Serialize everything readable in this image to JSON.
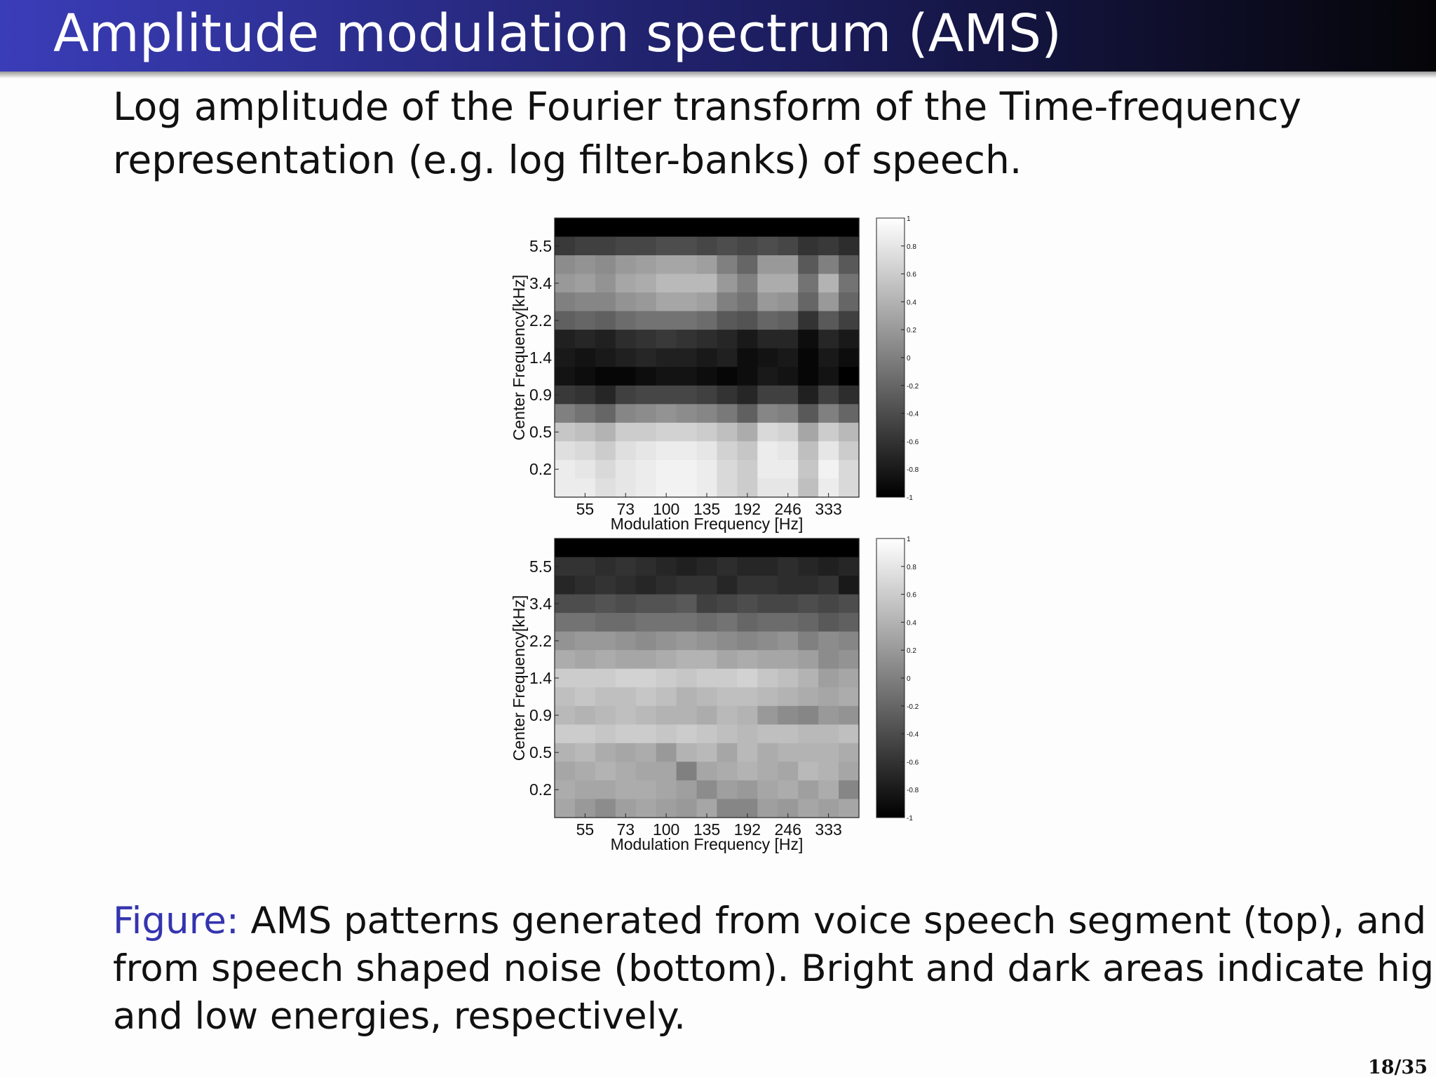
{
  "header": {
    "title": "Amplitude modulation spectrum (AMS)"
  },
  "body": [
    "Log amplitude of the Fourier transform of the Time-frequency",
    "representation (e.g. log filter-banks) of speech."
  ],
  "chart_data": [
    {
      "type": "heatmap",
      "colormap": "gray",
      "xlabel": "Modulation Frequency [Hz]",
      "ylabel": "Center Frequency[kHz]",
      "x": [
        null,
        "55",
        null,
        "73",
        null,
        "100",
        null,
        "135",
        null,
        "192",
        null,
        "246",
        null,
        "333",
        null
      ],
      "y": [
        null,
        "5.5",
        null,
        "3.4",
        null,
        "2.2",
        null,
        "1.4",
        null,
        "0.9",
        null,
        "0.5",
        null,
        "0.2",
        null
      ],
      "clim": [
        -1,
        1
      ],
      "cticks": [
        -1,
        -0.8,
        -0.6,
        -0.4,
        -0.2,
        0,
        0.2,
        0.4,
        0.6,
        0.8,
        1
      ],
      "values": [
        [
          -1,
          -1,
          -1,
          -1,
          -1,
          -1,
          -1,
          -1,
          -1,
          -1,
          -1,
          -1,
          -1,
          -1,
          -1
        ],
        [
          -0.55,
          -0.5,
          -0.5,
          -0.45,
          -0.45,
          -0.4,
          -0.4,
          -0.45,
          -0.4,
          -0.45,
          -0.4,
          -0.45,
          -0.6,
          -0.55,
          -0.65
        ],
        [
          0.1,
          0.15,
          0.1,
          0.2,
          0.25,
          0.3,
          0.3,
          0.25,
          0.0,
          -0.2,
          0.2,
          0.2,
          -0.3,
          0.0,
          -0.3
        ],
        [
          0.2,
          0.25,
          0.15,
          0.3,
          0.35,
          0.45,
          0.45,
          0.45,
          0.2,
          0.0,
          0.35,
          0.35,
          -0.1,
          0.4,
          -0.1
        ],
        [
          0.0,
          0.05,
          0.05,
          0.15,
          0.2,
          0.3,
          0.3,
          0.25,
          0.0,
          -0.1,
          0.2,
          0.15,
          -0.2,
          0.2,
          -0.2
        ],
        [
          -0.25,
          -0.2,
          -0.25,
          -0.15,
          -0.1,
          -0.1,
          -0.1,
          -0.15,
          -0.3,
          -0.35,
          -0.2,
          -0.25,
          -0.6,
          -0.3,
          -0.5
        ],
        [
          -0.75,
          -0.7,
          -0.75,
          -0.65,
          -0.6,
          -0.55,
          -0.6,
          -0.65,
          -0.7,
          -0.8,
          -0.7,
          -0.7,
          -0.9,
          -0.7,
          -0.8
        ],
        [
          -0.8,
          -0.85,
          -0.8,
          -0.75,
          -0.7,
          -0.75,
          -0.75,
          -0.8,
          -0.75,
          -0.9,
          -0.85,
          -0.8,
          -0.95,
          -0.8,
          -0.9
        ],
        [
          -0.85,
          -0.9,
          -0.95,
          -0.95,
          -0.9,
          -0.85,
          -0.85,
          -0.9,
          -0.95,
          -0.9,
          -0.8,
          -0.85,
          -0.95,
          -0.85,
          -1
        ],
        [
          -0.55,
          -0.6,
          -0.7,
          -0.5,
          -0.45,
          -0.45,
          -0.45,
          -0.5,
          -0.6,
          -0.7,
          -0.5,
          -0.5,
          -0.75,
          -0.5,
          -0.65
        ],
        [
          0.0,
          -0.1,
          -0.2,
          0.05,
          0.1,
          0.15,
          0.1,
          0.05,
          -0.05,
          -0.25,
          0.05,
          0.0,
          -0.3,
          0.0,
          -0.2
        ],
        [
          0.55,
          0.5,
          0.4,
          0.6,
          0.6,
          0.65,
          0.65,
          0.6,
          0.5,
          0.35,
          0.7,
          0.65,
          0.3,
          0.6,
          0.45
        ],
        [
          0.75,
          0.7,
          0.6,
          0.75,
          0.8,
          0.85,
          0.85,
          0.8,
          0.65,
          0.55,
          0.85,
          0.8,
          0.5,
          0.8,
          0.6
        ],
        [
          0.85,
          0.8,
          0.7,
          0.8,
          0.85,
          0.9,
          0.9,
          0.85,
          0.7,
          0.6,
          0.85,
          0.85,
          0.55,
          0.9,
          0.7
        ],
        [
          0.85,
          0.85,
          0.75,
          0.8,
          0.85,
          0.9,
          0.9,
          0.85,
          0.7,
          0.6,
          0.8,
          0.8,
          0.5,
          0.85,
          0.7
        ]
      ]
    },
    {
      "type": "heatmap",
      "colormap": "gray",
      "xlabel": "Modulation Frequency [Hz]",
      "ylabel": "Center Frequency[kHz]",
      "x": [
        null,
        "55",
        null,
        "73",
        null,
        "100",
        null,
        "135",
        null,
        "192",
        null,
        "246",
        null,
        "333",
        null
      ],
      "y": [
        null,
        "5.5",
        null,
        "3.4",
        null,
        "2.2",
        null,
        "1.4",
        null,
        "0.9",
        null,
        "0.5",
        null,
        "0.2",
        null
      ],
      "clim": [
        -1,
        1
      ],
      "cticks": [
        -1,
        -0.8,
        -0.6,
        -0.4,
        -0.2,
        0,
        0.2,
        0.4,
        0.6,
        0.8,
        1
      ],
      "values": [
        [
          -1,
          -1,
          -1,
          -1,
          -1,
          -1,
          -1,
          -1,
          -1,
          -1,
          -1,
          -1,
          -1,
          -1,
          -1
        ],
        [
          -0.6,
          -0.6,
          -0.65,
          -0.6,
          -0.65,
          -0.7,
          -0.75,
          -0.7,
          -0.65,
          -0.7,
          -0.7,
          -0.65,
          -0.7,
          -0.75,
          -0.7
        ],
        [
          -0.7,
          -0.65,
          -0.6,
          -0.65,
          -0.7,
          -0.65,
          -0.6,
          -0.6,
          -0.7,
          -0.6,
          -0.6,
          -0.65,
          -0.65,
          -0.6,
          -0.8
        ],
        [
          -0.4,
          -0.4,
          -0.35,
          -0.4,
          -0.35,
          -0.35,
          -0.3,
          -0.5,
          -0.45,
          -0.4,
          -0.45,
          -0.45,
          -0.4,
          -0.45,
          -0.4
        ],
        [
          -0.1,
          -0.1,
          -0.15,
          -0.15,
          -0.1,
          -0.1,
          -0.1,
          -0.15,
          -0.1,
          -0.2,
          -0.15,
          -0.15,
          -0.2,
          -0.3,
          -0.25
        ],
        [
          0.15,
          0.2,
          0.2,
          0.15,
          0.1,
          0.15,
          0.2,
          0.15,
          0.1,
          0.05,
          0.1,
          0.15,
          0.0,
          0.1,
          0.05
        ],
        [
          0.35,
          0.3,
          0.35,
          0.3,
          0.3,
          0.35,
          0.4,
          0.4,
          0.3,
          0.35,
          0.3,
          0.3,
          0.25,
          0.1,
          0.15
        ],
        [
          0.6,
          0.6,
          0.6,
          0.65,
          0.65,
          0.6,
          0.55,
          0.6,
          0.6,
          0.65,
          0.55,
          0.5,
          0.4,
          0.25,
          0.3
        ],
        [
          0.5,
          0.55,
          0.5,
          0.5,
          0.55,
          0.5,
          0.4,
          0.45,
          0.5,
          0.5,
          0.45,
          0.4,
          0.35,
          0.3,
          0.35
        ],
        [
          0.45,
          0.4,
          0.45,
          0.5,
          0.45,
          0.4,
          0.4,
          0.35,
          0.45,
          0.4,
          0.2,
          0.1,
          0.05,
          0.2,
          0.15
        ],
        [
          0.6,
          0.6,
          0.55,
          0.6,
          0.6,
          0.55,
          0.6,
          0.55,
          0.5,
          0.45,
          0.5,
          0.5,
          0.45,
          0.45,
          0.5
        ],
        [
          0.4,
          0.45,
          0.35,
          0.3,
          0.35,
          0.2,
          0.4,
          0.45,
          0.3,
          0.45,
          0.35,
          0.4,
          0.4,
          0.4,
          0.35
        ],
        [
          0.3,
          0.35,
          0.4,
          0.35,
          0.3,
          0.3,
          0.0,
          0.3,
          0.35,
          0.4,
          0.35,
          0.3,
          0.45,
          0.4,
          0.3
        ],
        [
          0.35,
          0.3,
          0.3,
          0.35,
          0.35,
          0.3,
          0.25,
          0.1,
          0.25,
          0.2,
          0.3,
          0.35,
          0.25,
          0.35,
          0.05
        ],
        [
          0.3,
          0.2,
          0.1,
          0.25,
          0.3,
          0.25,
          0.2,
          0.3,
          0.05,
          0.05,
          0.25,
          0.2,
          0.3,
          0.25,
          0.3
        ]
      ]
    }
  ],
  "caption": {
    "label": "Figure:",
    "lines": [
      "AMS patterns generated from voice speech segment (top), and",
      "from speech shaped noise (bottom). Bright and dark areas indicate high",
      "and low energies, respectively."
    ]
  },
  "page_number": "18/35"
}
